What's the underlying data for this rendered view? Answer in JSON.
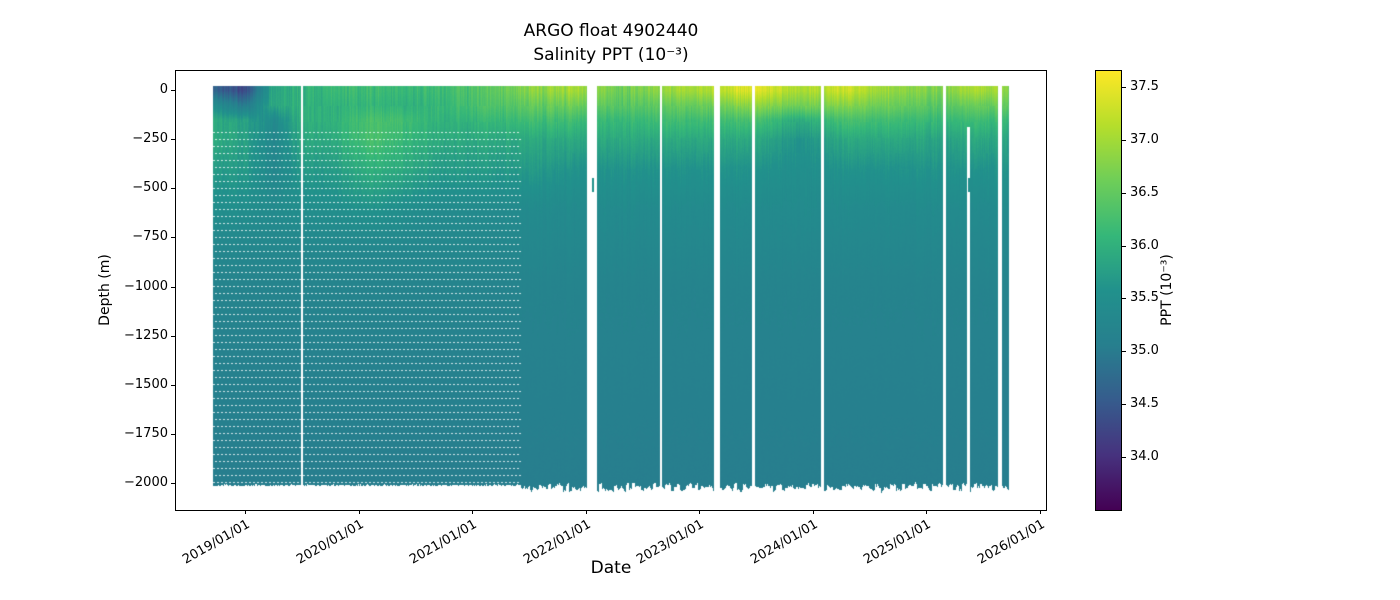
{
  "chart_data": {
    "type": "heatmap",
    "title": "ARGO float 4902440",
    "subtitle": "Salinity PPT (10⁻³)",
    "xlabel": "Date",
    "ylabel": "Depth (m)",
    "colorbar_label": "PPT (10⁻³)",
    "colormap": "viridis",
    "vmin": 33.5,
    "vmax": 37.65,
    "colorbar_ticks": [
      37.5,
      37.0,
      36.5,
      36.0,
      35.5,
      35.0,
      34.5,
      34.0
    ],
    "x_tick_labels": [
      "2019/01/01",
      "2020/01/01",
      "2021/01/01",
      "2022/01/01",
      "2023/01/01",
      "2024/01/01",
      "2025/01/01",
      "2026/01/01"
    ],
    "x_tick_years": [
      2019,
      2020,
      2021,
      2022,
      2023,
      2024,
      2025,
      2026
    ],
    "y_ticks": [
      0,
      -250,
      -500,
      -750,
      -1000,
      -1250,
      -1500,
      -1750,
      -2000
    ],
    "time_range": [
      2018.72,
      2025.72
    ],
    "depth_range": [
      0,
      -2050
    ],
    "colormap_stops": [
      [
        0.0,
        "#440154"
      ],
      [
        0.125,
        "#46327e"
      ],
      [
        0.25,
        "#365c8d"
      ],
      [
        0.375,
        "#277f8e"
      ],
      [
        0.5,
        "#21918c"
      ],
      [
        0.625,
        "#35b779"
      ],
      [
        0.75,
        "#6ece58"
      ],
      [
        0.875,
        "#b5de2b"
      ],
      [
        1.0,
        "#fde725"
      ]
    ],
    "grid": {
      "times": [
        2018.75,
        2019.0,
        2019.25,
        2019.5,
        2019.75,
        2020.1,
        2020.4,
        2020.75,
        2021.1,
        2021.5,
        2021.9,
        2022.3,
        2022.7,
        2023.1,
        2023.5,
        2023.9,
        2024.3,
        2024.7,
        2025.1,
        2025.5,
        2025.72
      ],
      "depths": [
        0,
        -75,
        -150,
        -250,
        -400,
        -600,
        -800,
        -1000,
        -1300,
        -1600,
        -2000
      ],
      "salinity": [
        [
          34.6,
          34.3,
          35.9,
          36.0,
          36.1,
          36.2,
          36.1,
          36.2,
          36.4,
          36.8,
          37.0,
          36.6,
          36.9,
          37.1,
          37.5,
          37.0,
          37.3,
          36.9,
          36.7,
          37.1,
          36.8
        ],
        [
          35.4,
          35.0,
          35.9,
          36.0,
          36.0,
          36.1,
          36.0,
          36.1,
          36.3,
          36.5,
          36.6,
          36.4,
          36.5,
          36.6,
          36.9,
          36.6,
          36.8,
          36.6,
          36.4,
          36.6,
          36.5
        ],
        [
          35.9,
          35.8,
          35.4,
          36.0,
          36.0,
          36.3,
          36.2,
          36.0,
          36.1,
          36.2,
          36.2,
          36.1,
          36.2,
          36.2,
          36.3,
          35.9,
          36.3,
          36.2,
          36.1,
          36.2,
          36.1
        ],
        [
          35.9,
          35.8,
          35.3,
          35.9,
          35.9,
          36.3,
          36.1,
          35.9,
          35.9,
          35.9,
          35.9,
          35.9,
          35.9,
          35.9,
          35.9,
          35.6,
          35.9,
          35.9,
          35.8,
          35.9,
          35.8
        ],
        [
          35.7,
          35.7,
          35.3,
          35.7,
          35.7,
          36.0,
          35.9,
          35.7,
          35.7,
          35.7,
          35.6,
          35.6,
          35.6,
          35.6,
          35.6,
          35.5,
          35.6,
          35.6,
          35.6,
          35.6,
          35.6
        ],
        [
          35.5,
          35.5,
          35.4,
          35.5,
          35.5,
          35.6,
          35.5,
          35.4,
          35.4,
          35.4,
          35.4,
          35.4,
          35.4,
          35.4,
          35.4,
          35.4,
          35.4,
          35.4,
          35.4,
          35.4,
          35.4
        ],
        [
          35.3,
          35.3,
          35.3,
          35.3,
          35.3,
          35.3,
          35.3,
          35.3,
          35.3,
          35.3,
          35.3,
          35.3,
          35.3,
          35.3,
          35.3,
          35.3,
          35.3,
          35.3,
          35.3,
          35.3,
          35.3
        ],
        [
          35.2,
          35.2,
          35.2,
          35.2,
          35.2,
          35.2,
          35.2,
          35.2,
          35.2,
          35.2,
          35.2,
          35.2,
          35.2,
          35.2,
          35.2,
          35.2,
          35.2,
          35.2,
          35.2,
          35.2,
          35.2
        ],
        [
          35.15,
          35.15,
          35.15,
          35.15,
          35.15,
          35.15,
          35.15,
          35.15,
          35.15,
          35.15,
          35.15,
          35.15,
          35.15,
          35.15,
          35.15,
          35.15,
          35.15,
          35.15,
          35.15,
          35.15,
          35.15
        ],
        [
          35.1,
          35.1,
          35.1,
          35.1,
          35.1,
          35.1,
          35.1,
          35.1,
          35.1,
          35.1,
          35.1,
          35.1,
          35.1,
          35.1,
          35.1,
          35.1,
          35.1,
          35.1,
          35.1,
          35.1,
          35.1
        ],
        [
          35.05,
          35.05,
          35.05,
          35.05,
          35.05,
          35.05,
          35.05,
          35.05,
          35.05,
          35.05,
          35.05,
          35.05,
          35.05,
          35.05,
          35.05,
          35.05,
          35.05,
          35.05,
          35.05,
          35.05,
          35.05
        ]
      ]
    },
    "gaps": [
      {
        "t": 2019.5,
        "w": 2
      },
      {
        "t": 2022.05,
        "w": 10
      },
      {
        "t": 2022.66,
        "w": 2
      },
      {
        "t": 2023.15,
        "w": 6
      },
      {
        "t": 2023.48,
        "w": 3
      },
      {
        "t": 2024.08,
        "w": 3
      },
      {
        "t": 2025.16,
        "w": 3
      },
      {
        "t": 2025.37,
        "w": 3,
        "depth_top": -185
      },
      {
        "t": 2025.65,
        "w": 4
      }
    ],
    "sparse_dotted_region": {
      "time_end": 2021.42,
      "depth_top": -215
    },
    "isolated_segments": [
      {
        "t": 2022.07,
        "depth_top": -450,
        "depth_bottom": -520,
        "value": 35.6
      },
      {
        "t": 2025.38,
        "depth_top": -450,
        "depth_bottom": -520,
        "value": 35.5
      }
    ]
  }
}
